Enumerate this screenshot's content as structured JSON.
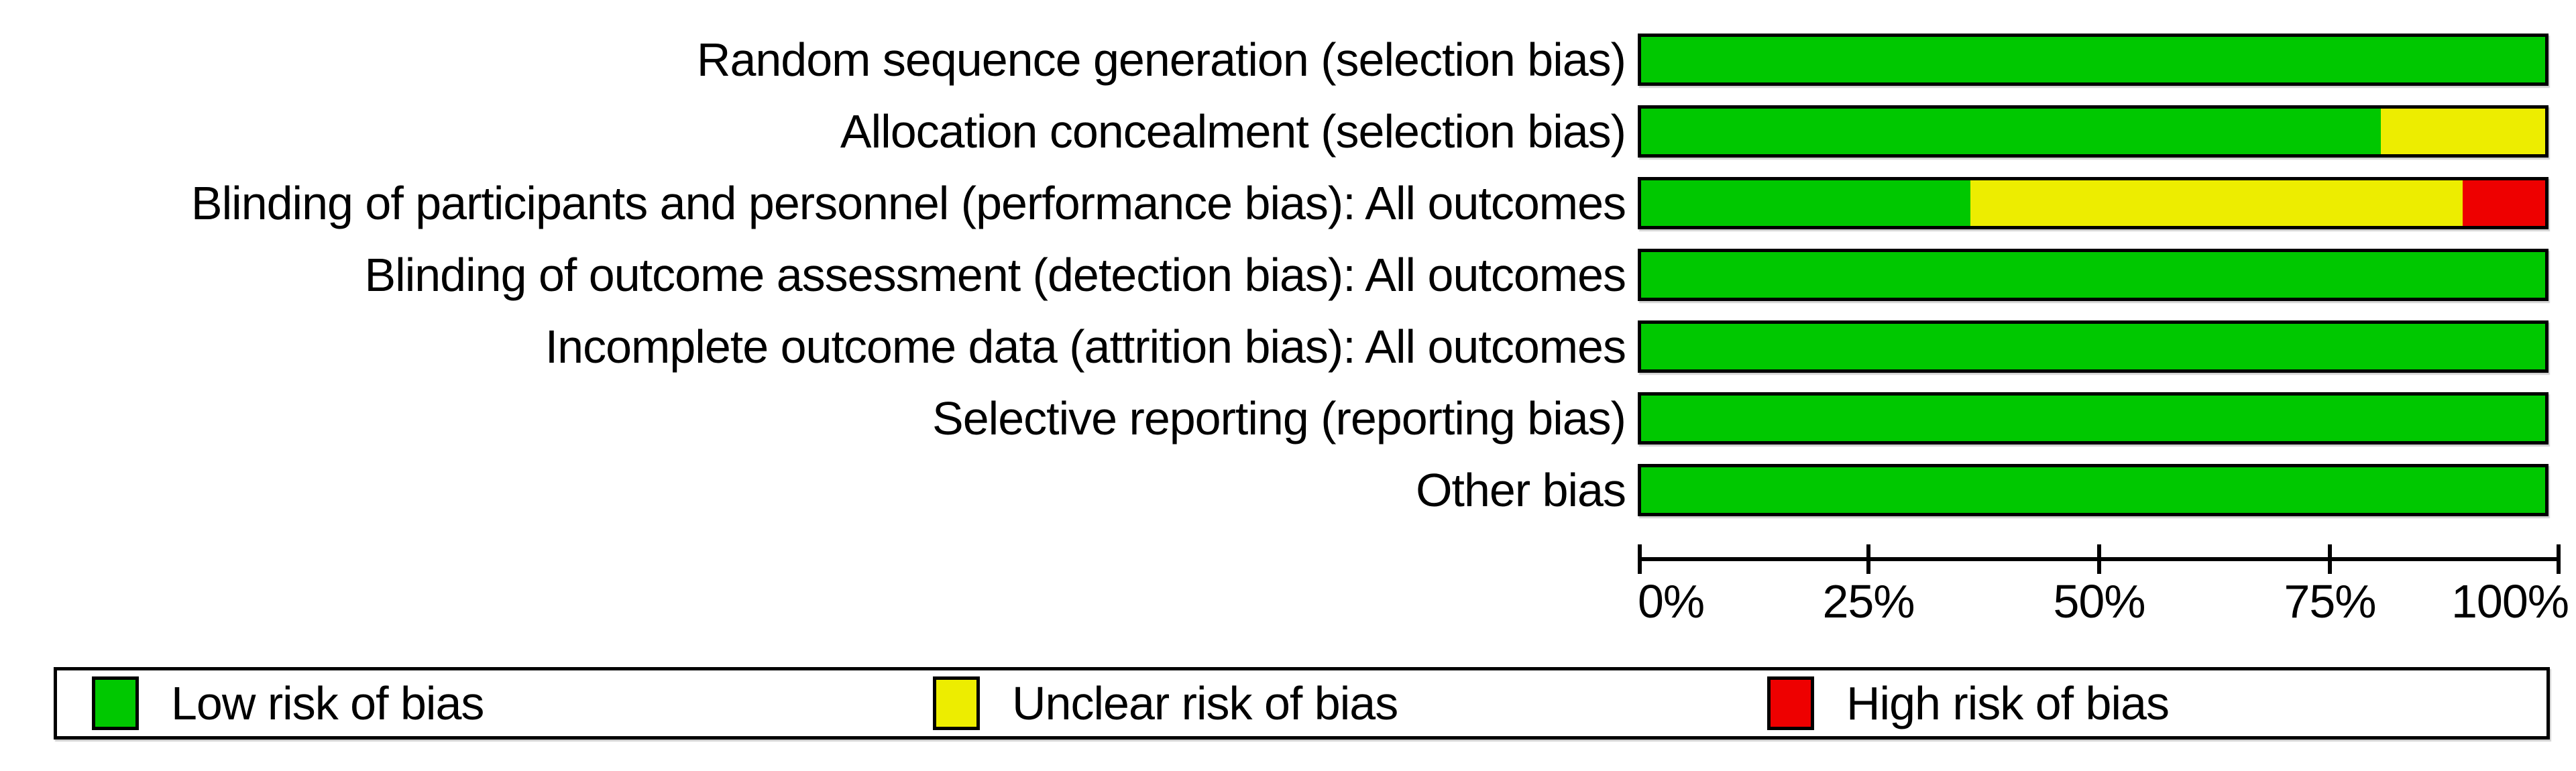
{
  "figure": {
    "background": "#ffffff",
    "border_color": "#000000"
  },
  "chart_data": {
    "type": "bar",
    "orientation": "horizontal_stacked",
    "title": "",
    "xlabel": "",
    "ylabel": "",
    "grid": false,
    "categories": [
      "Random sequence generation (selection bias)",
      "Allocation concealment (selection bias)",
      "Blinding of participants and personnel (performance bias): All outcomes",
      "Blinding of outcome assessment (detection bias): All outcomes",
      "Incomplete outcome data (attrition bias): All outcomes",
      "Selective reporting (reporting bias)",
      "Other bias"
    ],
    "series": [
      {
        "name": "Low risk of bias",
        "color": "#00C800",
        "values": [
          100,
          81.8,
          36.4,
          100,
          100,
          100,
          100
        ]
      },
      {
        "name": "Unclear risk of bias",
        "color": "#EDED00",
        "values": [
          0,
          18.2,
          54.5,
          0,
          0,
          0,
          0
        ]
      },
      {
        "name": "High risk of bias",
        "color": "#EE0000",
        "values": [
          0,
          0,
          9.1,
          0,
          0,
          0,
          0
        ]
      }
    ],
    "x_axis": {
      "range": [
        0,
        100
      ],
      "ticks": [
        "0%",
        "25%",
        "50%",
        "75%",
        "100%"
      ]
    },
    "legend": {
      "position": "bottom",
      "entries": [
        {
          "label": "Low risk of bias",
          "color": "#00C800"
        },
        {
          "label": "Unclear risk of bias",
          "color": "#EDED00"
        },
        {
          "label": "High risk of bias",
          "color": "#EE0000"
        }
      ]
    }
  }
}
